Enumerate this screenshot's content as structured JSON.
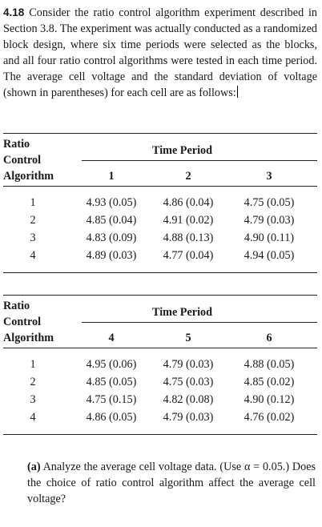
{
  "problem": {
    "number": "4.18",
    "text": "Consider the ratio control algorithm experiment described in Section 3.8. The experiment was actually conducted as a randomized block design, where six time periods were selected as the blocks, and all four ratio control algorithms were tested in each time period. The average cell voltage and the standard deviation of voltage (shown in parentheses) for each cell are as follows:"
  },
  "table1": {
    "row_header": [
      "Ratio",
      "Control",
      "Algorithm"
    ],
    "group_header": "Time Period",
    "columns": [
      "1",
      "2",
      "3"
    ],
    "rows": [
      {
        "algo": "1",
        "cells": [
          "4.93 (0.05)",
          "4.86 (0.04)",
          "4.75 (0.05)"
        ]
      },
      {
        "algo": "2",
        "cells": [
          "4.85 (0.04)",
          "4.91 (0.02)",
          "4.79 (0.03)"
        ]
      },
      {
        "algo": "3",
        "cells": [
          "4.83 (0.09)",
          "4.88 (0.13)",
          "4.90 (0.11)"
        ]
      },
      {
        "algo": "4",
        "cells": [
          "4.89 (0.03)",
          "4.77 (0.04)",
          "4.94 (0.05)"
        ]
      }
    ]
  },
  "table2": {
    "row_header": [
      "Ratio",
      "Control",
      "Algorithm"
    ],
    "group_header": "Time Period",
    "columns": [
      "4",
      "5",
      "6"
    ],
    "rows": [
      {
        "algo": "1",
        "cells": [
          "4.95 (0.06)",
          "4.79 (0.03)",
          "4.88 (0.05)"
        ]
      },
      {
        "algo": "2",
        "cells": [
          "4.85 (0.05)",
          "4.75 (0.03)",
          "4.85 (0.02)"
        ]
      },
      {
        "algo": "3",
        "cells": [
          "4.75 (0.15)",
          "4.82 (0.08)",
          "4.90 (0.12)"
        ]
      },
      {
        "algo": "4",
        "cells": [
          "4.86 (0.05)",
          "4.79 (0.03)",
          "4.76 (0.02)"
        ]
      }
    ]
  },
  "part_a": {
    "label": "(a)",
    "text": "Analyze the average cell voltage data. (Use α = 0.05.) Does the choice of ratio control algorithm affect the average cell voltage?"
  }
}
